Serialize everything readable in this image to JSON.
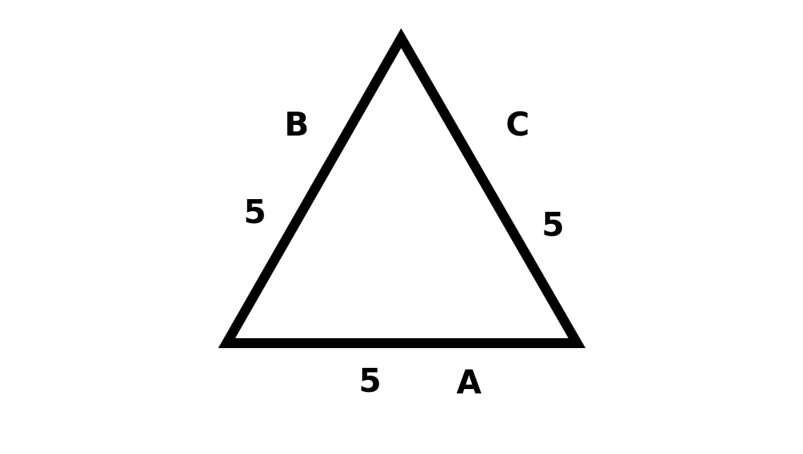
{
  "diagram": {
    "shape": "equilateral-triangle",
    "stroke_color": "#000000",
    "fill_color": "#ffffff",
    "side_labels": {
      "left": "B",
      "right": "C",
      "bottom": "A"
    },
    "side_lengths": {
      "left": "5",
      "right": "5",
      "bottom": "5"
    }
  }
}
